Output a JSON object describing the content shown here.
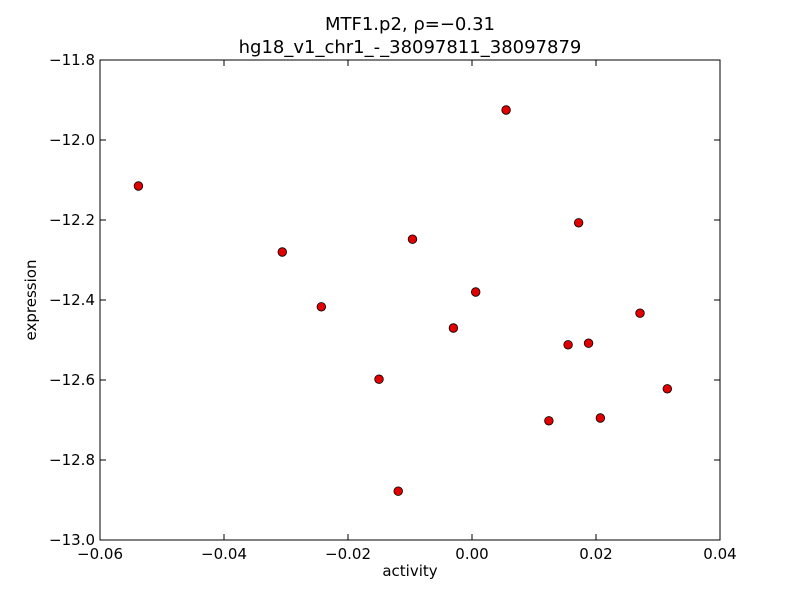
{
  "chart_data": {
    "type": "scatter",
    "title_line1": "MTF1.p2, ρ=−0.31",
    "title_line2": "hg18_v1_chr1_-_38097811_38097879",
    "xlabel": "activity",
    "ylabel": "expression",
    "xlim": [
      -0.06,
      0.04
    ],
    "ylim": [
      -13.0,
      -11.8
    ],
    "x_ticks": [
      "−0.06",
      "−0.04",
      "−0.02",
      "0.00",
      "0.02",
      "0.04"
    ],
    "y_ticks": [
      "−11.8",
      "−12.0",
      "−12.2",
      "−12.4",
      "−12.6",
      "−12.8",
      "−13.0"
    ],
    "x_tick_values": [
      -0.06,
      -0.04,
      -0.02,
      0.0,
      0.02,
      0.04
    ],
    "y_tick_values": [
      -11.8,
      -12.0,
      -12.2,
      -12.4,
      -12.6,
      -12.8,
      -13.0
    ],
    "marker_color": "#e00000",
    "points": [
      {
        "x": -0.0538,
        "y": -12.115
      },
      {
        "x": -0.0306,
        "y": -12.28
      },
      {
        "x": -0.0243,
        "y": -12.417
      },
      {
        "x": -0.015,
        "y": -12.598
      },
      {
        "x": -0.0119,
        "y": -12.878
      },
      {
        "x": -0.0096,
        "y": -12.248
      },
      {
        "x": -0.003,
        "y": -12.47
      },
      {
        "x": 0.0006,
        "y": -12.38
      },
      {
        "x": 0.0055,
        "y": -11.925
      },
      {
        "x": 0.0124,
        "y": -12.702
      },
      {
        "x": 0.0155,
        "y": -12.512
      },
      {
        "x": 0.0172,
        "y": -12.207
      },
      {
        "x": 0.0188,
        "y": -12.508
      },
      {
        "x": 0.0207,
        "y": -12.695
      },
      {
        "x": 0.0271,
        "y": -12.433
      },
      {
        "x": 0.0315,
        "y": -12.622
      }
    ]
  }
}
